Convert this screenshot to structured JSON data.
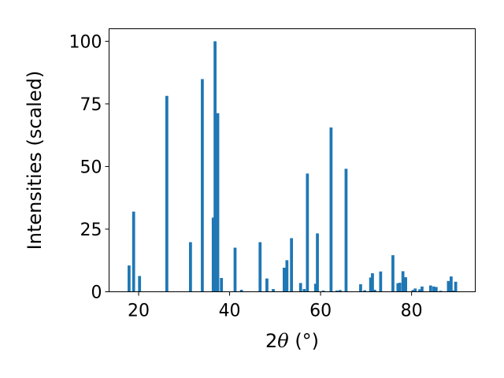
{
  "chart_data": {
    "type": "bar",
    "xlabel_parts": {
      "pre": "2",
      "theta": "θ",
      "post": " (°)"
    },
    "ylabel": "Intensities (scaled)",
    "xlim": [
      13.5,
      94.0
    ],
    "ylim": [
      0,
      105
    ],
    "xticks": [
      20,
      40,
      60,
      80
    ],
    "yticks": [
      0,
      25,
      50,
      75,
      100
    ],
    "bar_color": "#1f77b4",
    "bar_width": 0.65,
    "x": [
      17.9,
      18.9,
      20.2,
      26.2,
      31.4,
      34.0,
      36.4,
      36.8,
      37.4,
      38.2,
      41.2,
      42.6,
      46.7,
      48.2,
      49.6,
      52.0,
      52.6,
      53.6,
      55.6,
      56.4,
      57.1,
      58.9,
      59.3,
      60.6,
      62.3,
      63.6,
      64.3,
      65.6,
      68.8,
      69.7,
      71.0,
      71.4,
      71.9,
      73.2,
      75.9,
      77.0,
      77.4,
      78.1,
      78.7,
      80.3,
      80.8,
      81.8,
      82.3,
      84.2,
      84.9,
      85.4,
      86.4,
      88.1,
      88.7,
      89.1,
      89.7
    ],
    "values": [
      10.5,
      32.0,
      6.3,
      78.2,
      19.8,
      84.9,
      29.6,
      100.0,
      71.3,
      5.5,
      17.6,
      0.8,
      19.8,
      5.3,
      1.1,
      9.6,
      12.6,
      21.4,
      3.5,
      1.1,
      47.2,
      3.2,
      23.3,
      0.5,
      65.6,
      0.5,
      0.7,
      49.1,
      3.0,
      0.6,
      5.7,
      7.4,
      0.8,
      8.1,
      14.6,
      3.4,
      3.6,
      8.2,
      5.8,
      0.7,
      1.3,
      1.0,
      2.1,
      2.5,
      2.1,
      1.9,
      0.4,
      4.3,
      6.1,
      0.5,
      4.0
    ]
  }
}
